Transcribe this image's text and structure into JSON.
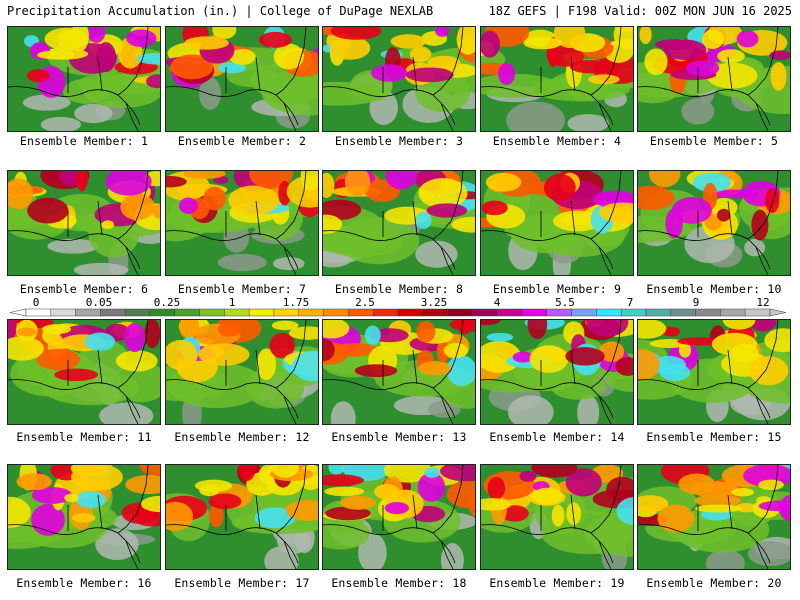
{
  "header": {
    "left": "Precipitation Accumulation (in.) | College of DuPage NEXLAB",
    "right": "18Z GEFS | F198 Valid: 00Z MON JUN 16 2025"
  },
  "members": [
    "Ensemble Member: 1",
    "Ensemble Member: 2",
    "Ensemble Member: 3",
    "Ensemble Member: 4",
    "Ensemble Member: 5",
    "Ensemble Member: 6",
    "Ensemble Member: 7",
    "Ensemble Member: 8",
    "Ensemble Member: 9",
    "Ensemble Member: 10",
    "Ensemble Member: 11",
    "Ensemble Member: 12",
    "Ensemble Member: 13",
    "Ensemble Member: 14",
    "Ensemble Member: 15",
    "Ensemble Member: 16",
    "Ensemble Member: 17",
    "Ensemble Member: 18",
    "Ensemble Member: 19",
    "Ensemble Member: 20"
  ],
  "colorbar": {
    "ticks": [
      "0",
      "0.05",
      "0.25",
      "1",
      "1.75",
      "2.5",
      "3.25",
      "4",
      "5.5",
      "7",
      "9",
      "12"
    ],
    "colors": [
      "#ffffff",
      "#d9d9d9",
      "#a6a6a6",
      "#7a7a7a",
      "#4e7f4e",
      "#2e8b2e",
      "#4ca02c",
      "#7cc324",
      "#b5dc1a",
      "#f0f000",
      "#ffd400",
      "#ffb000",
      "#ff8a00",
      "#ff5a00",
      "#f02a00",
      "#d40000",
      "#b00010",
      "#8c0020",
      "#a0005a",
      "#c8008c",
      "#e600e6",
      "#b05cff",
      "#7aa0ff",
      "#30e6ff",
      "#40d0c8",
      "#50b0a8",
      "#6a9090",
      "#8a8a8a",
      "#a8a8a8",
      "#c8c8c8"
    ]
  }
}
